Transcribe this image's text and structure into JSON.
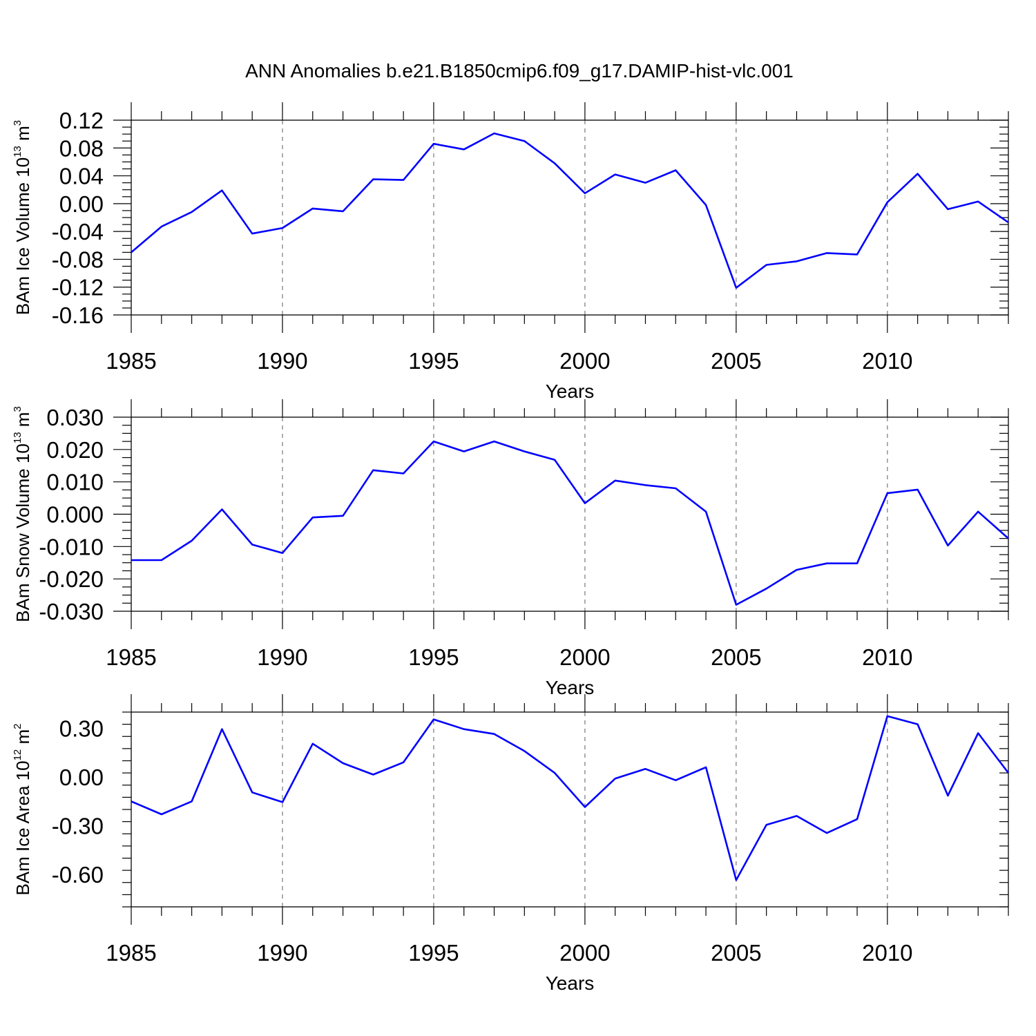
{
  "title": "ANN Anomalies b.e21.B1850cmip6.f09_g17.DAMIP-hist-vlc.001",
  "line_color": "#0000ff",
  "chart_data": [
    {
      "type": "line",
      "ylabel": "BAm Ice Volume 10",
      "ylabel_exp": "13",
      "ylabel_unit": " m",
      "ylabel_unit_exp": "3",
      "xlabel": "Years",
      "xlim": [
        1985,
        2014
      ],
      "ylim": [
        -0.16,
        0.12
      ],
      "xticks": [
        "1985",
        "1990",
        "1995",
        "2000",
        "2005",
        "2010"
      ],
      "yticks": [
        "0.12",
        "0.08",
        "0.04",
        "0.00",
        "-0.04",
        "-0.08",
        "-0.12",
        "-0.16"
      ],
      "grid": "dashed vertical at major x ticks",
      "x": [
        1985,
        1986,
        1987,
        1988,
        1989,
        1990,
        1991,
        1992,
        1993,
        1994,
        1995,
        1996,
        1997,
        1998,
        1999,
        2000,
        2001,
        2002,
        2003,
        2004,
        2005,
        2006,
        2007,
        2008,
        2009,
        2010,
        2011,
        2012,
        2013,
        2014
      ],
      "series": [
        {
          "values": [
            -0.07,
            -0.033,
            -0.012,
            0.019,
            -0.043,
            -0.035,
            -0.007,
            -0.011,
            0.035,
            0.034,
            0.086,
            0.078,
            0.101,
            0.09,
            0.058,
            0.015,
            0.042,
            0.03,
            0.048,
            -0.002,
            -0.121,
            -0.088,
            -0.083,
            -0.071,
            -0.073,
            0.002,
            0.043,
            -0.008,
            0.003,
            -0.027
          ]
        }
      ]
    },
    {
      "type": "line",
      "ylabel": "BAm Snow Volume 10",
      "ylabel_exp": "13",
      "ylabel_unit": " m",
      "ylabel_unit_exp": "3",
      "xlabel": "Years",
      "xlim": [
        1985,
        2014
      ],
      "ylim": [
        -0.03,
        0.03
      ],
      "xticks": [
        "1985",
        "1990",
        "1995",
        "2000",
        "2005",
        "2010"
      ],
      "yticks": [
        "0.030",
        "0.020",
        "0.010",
        "0.000",
        "-0.010",
        "-0.020",
        "-0.030"
      ],
      "grid": "dashed vertical at major x ticks",
      "x": [
        1985,
        1986,
        1987,
        1988,
        1989,
        1990,
        1991,
        1992,
        1993,
        1994,
        1995,
        1996,
        1997,
        1998,
        1999,
        2000,
        2001,
        2002,
        2003,
        2004,
        2005,
        2006,
        2007,
        2008,
        2009,
        2010,
        2011,
        2012,
        2013,
        2014
      ],
      "series": [
        {
          "values": [
            -0.0142,
            -0.0142,
            -0.0082,
            0.0015,
            -0.0094,
            -0.012,
            -0.001,
            -0.0005,
            0.0136,
            0.0126,
            0.0225,
            0.0194,
            0.0225,
            0.0194,
            0.0168,
            0.0034,
            0.0104,
            0.009,
            0.008,
            0.0008,
            -0.028,
            -0.023,
            -0.0172,
            -0.0152,
            -0.0152,
            0.0065,
            0.0076,
            -0.0097,
            0.0008,
            -0.0075
          ]
        }
      ]
    },
    {
      "type": "line",
      "ylabel": "BAm Ice Area 10",
      "ylabel_exp": "12",
      "ylabel_unit": " m",
      "ylabel_unit_exp": "2",
      "xlabel": "Years",
      "xlim": [
        1985,
        2014
      ],
      "ylim": [
        -0.8,
        0.4
      ],
      "xticks": [
        "1985",
        "1990",
        "1995",
        "2000",
        "2005",
        "2010"
      ],
      "yticks": [
        "0.30",
        "0.00",
        "-0.30",
        "-0.60"
      ],
      "grid": "dashed vertical at major x ticks",
      "x": [
        1985,
        1986,
        1987,
        1988,
        1989,
        1990,
        1991,
        1992,
        1993,
        1994,
        1995,
        1996,
        1997,
        1998,
        1999,
        2000,
        2001,
        2002,
        2003,
        2004,
        2005,
        2006,
        2007,
        2008,
        2009,
        2010,
        2011,
        2012,
        2013,
        2014
      ],
      "series": [
        {
          "values": [
            -0.15,
            -0.23,
            -0.15,
            0.295,
            -0.095,
            -0.155,
            0.205,
            0.085,
            0.015,
            0.09,
            0.355,
            0.295,
            0.265,
            0.16,
            0.025,
            -0.185,
            -0.01,
            0.05,
            -0.02,
            0.06,
            -0.635,
            -0.295,
            -0.24,
            -0.345,
            -0.26,
            0.375,
            0.325,
            -0.115,
            0.27,
            0.025
          ]
        }
      ]
    }
  ]
}
